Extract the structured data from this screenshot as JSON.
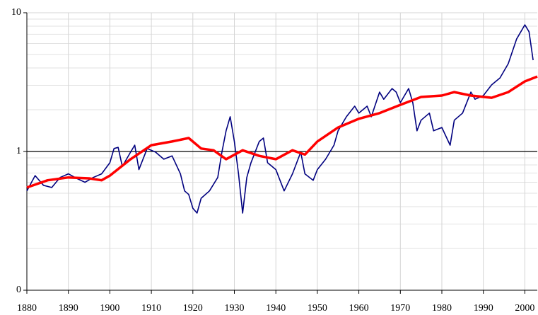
{
  "chart_data": {
    "type": "line",
    "log_y": true,
    "grid": true,
    "minor_grid": true,
    "xlim": [
      1880,
      2003
    ],
    "xticks": [
      1880,
      1890,
      1900,
      1910,
      1920,
      1930,
      1940,
      1950,
      1960,
      1970,
      1980,
      1990,
      2000
    ],
    "ylim": [
      0.1,
      10
    ],
    "yticks": [
      {
        "value": 0.1,
        "label": "0"
      },
      1,
      10
    ],
    "reference_line": 1,
    "series": [
      {
        "color": "#00007f",
        "x": [
          1880,
          1882,
          1884,
          1886,
          1888,
          1890,
          1892,
          1894,
          1896,
          1898,
          1900,
          1901,
          1902,
          1903,
          1905,
          1906,
          1907,
          1909,
          1911,
          1913,
          1915,
          1917,
          1918,
          1919,
          1920,
          1921,
          1922,
          1924,
          1926,
          1927,
          1928,
          1929,
          1930,
          1931,
          1932,
          1933,
          1934,
          1936,
          1937,
          1938,
          1940,
          1942,
          1944,
          1946,
          1947,
          1949,
          1950,
          1952,
          1954,
          1955,
          1957,
          1959,
          1960,
          1962,
          1963,
          1965,
          1966,
          1968,
          1969,
          1970,
          1972,
          1973,
          1974,
          1975,
          1977,
          1978,
          1980,
          1982,
          1983,
          1985,
          1987,
          1988,
          1990,
          1992,
          1994,
          1996,
          1998,
          2000,
          2001,
          2002
        ],
        "values": [
          0.52,
          0.67,
          0.57,
          0.55,
          0.65,
          0.69,
          0.64,
          0.6,
          0.65,
          0.69,
          0.83,
          1.05,
          1.07,
          0.78,
          0.99,
          1.11,
          0.74,
          1.05,
          0.99,
          0.88,
          0.93,
          0.69,
          0.52,
          0.49,
          0.39,
          0.36,
          0.46,
          0.52,
          0.65,
          0.99,
          1.41,
          1.78,
          1.18,
          0.69,
          0.36,
          0.65,
          0.83,
          1.18,
          1.25,
          0.83,
          0.74,
          0.52,
          0.69,
          0.99,
          0.69,
          0.62,
          0.74,
          0.88,
          1.11,
          1.41,
          1.78,
          2.12,
          1.89,
          2.12,
          1.78,
          2.68,
          2.38,
          2.84,
          2.68,
          2.25,
          2.84,
          2.25,
          1.41,
          1.68,
          1.89,
          1.41,
          1.49,
          1.11,
          1.68,
          1.89,
          2.68,
          2.38,
          2.53,
          3.02,
          3.39,
          4.29,
          6.46,
          8.18,
          7.3,
          4.55
        ]
      },
      {
        "color": "#ff0000",
        "x": [
          1880,
          1885,
          1890,
          1895,
          1898,
          1900,
          1905,
          1910,
          1915,
          1919,
          1922,
          1925,
          1928,
          1932,
          1936,
          1940,
          1944,
          1947,
          1950,
          1955,
          1960,
          1965,
          1970,
          1975,
          1980,
          1983,
          1987,
          1992,
          1996,
          2000,
          2003
        ],
        "values": [
          0.55,
          0.62,
          0.65,
          0.64,
          0.62,
          0.67,
          0.88,
          1.11,
          1.18,
          1.25,
          1.05,
          1.02,
          0.88,
          1.02,
          0.93,
          0.88,
          1.02,
          0.95,
          1.18,
          1.49,
          1.72,
          1.89,
          2.17,
          2.47,
          2.53,
          2.68,
          2.53,
          2.44,
          2.68,
          3.2,
          3.47
        ]
      }
    ]
  }
}
